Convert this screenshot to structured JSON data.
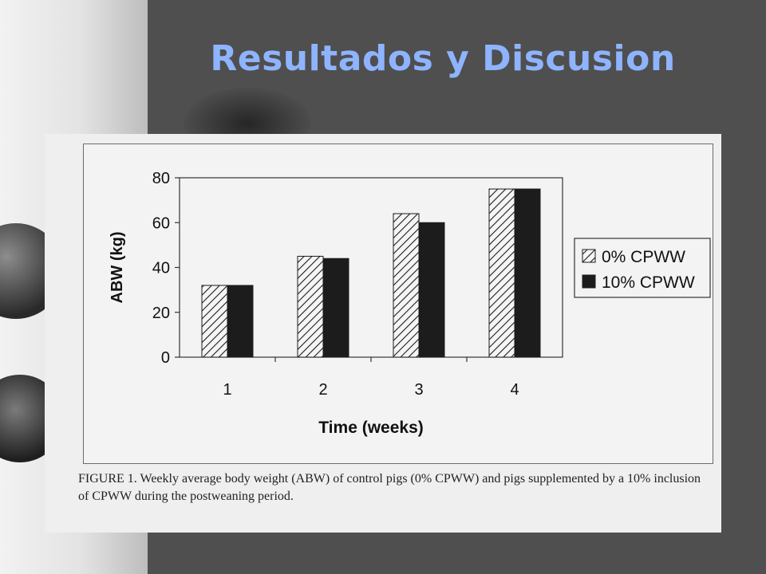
{
  "slide": {
    "title": "Resultados y Discusion"
  },
  "figure": {
    "caption": "FIGURE 1. Weekly average body weight (ABW) of control pigs (0% CPWW) and pigs supplemented by a 10% inclusion of CPWW during the postweaning period."
  },
  "colors": {
    "title": "#8fb4ff",
    "background": "#4f4f4f",
    "series_solid": "#1c1c1c"
  },
  "chart_data": {
    "type": "bar",
    "categories": [
      "1",
      "2",
      "3",
      "4"
    ],
    "series": [
      {
        "name": "0% CPWW",
        "values": [
          32,
          45,
          64,
          75
        ],
        "pattern": "hatched"
      },
      {
        "name": "10% CPWW",
        "values": [
          32,
          44,
          60,
          75
        ],
        "pattern": "solid"
      }
    ],
    "xlabel": "Time (weeks)",
    "ylabel": "ABW (kg)",
    "ylim": [
      0,
      80
    ],
    "yticks": [
      0,
      20,
      40,
      60,
      80
    ],
    "grid": false,
    "legend": "right"
  }
}
